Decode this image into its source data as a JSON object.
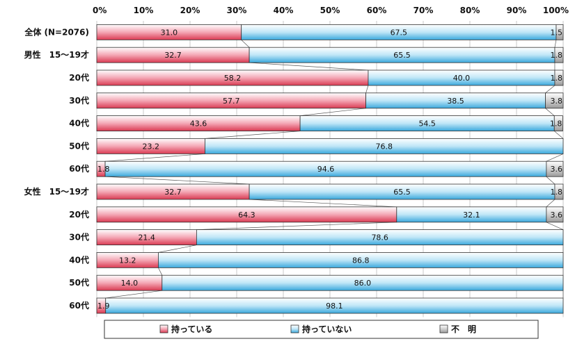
{
  "chart_data": {
    "type": "bar",
    "orientation": "horizontal",
    "stacked": true,
    "percent_stacked": true,
    "xlim": [
      0,
      100
    ],
    "x_ticks": [
      "0%",
      "10%",
      "20%",
      "30%",
      "40%",
      "50%",
      "60%",
      "70%",
      "80%",
      "90%",
      "100%"
    ],
    "gridlines": true,
    "legend_placement": "bottom",
    "colors": {
      "series_0": "#f4a7b5",
      "series_1": "#bfe6f7",
      "series_2": "#d0d0d0",
      "gradient_0": "#d93a52",
      "gradient_1": "#3aa8dc",
      "gradient_2": "#9a9a9a"
    },
    "categories": [
      "全体 (N=2076)",
      "男性　15～19才",
      "20代",
      "30代",
      "40代",
      "50代",
      "60代",
      "女性　15～19才",
      "20代",
      "30代",
      "40代",
      "50代",
      "60代"
    ],
    "series": [
      {
        "name": "持っている",
        "values": [
          31.0,
          32.7,
          58.2,
          57.7,
          43.6,
          23.2,
          1.8,
          32.7,
          64.3,
          21.4,
          13.2,
          14.0,
          1.9
        ],
        "labels": [
          "31.0",
          "32.7",
          "58.2",
          "57.7",
          "43.6",
          "23.2",
          "1.8",
          "32.7",
          "64.3",
          "21.4",
          "13.2",
          "14.0",
          "1.9"
        ]
      },
      {
        "name": "持っていない",
        "values": [
          67.5,
          65.5,
          40.0,
          38.5,
          54.5,
          76.8,
          94.6,
          65.5,
          32.1,
          78.6,
          86.8,
          86.0,
          98.1
        ],
        "labels": [
          "67.5",
          "65.5",
          "40.0",
          "38.5",
          "54.5",
          "76.8",
          "94.6",
          "65.5",
          "32.1",
          "78.6",
          "86.8",
          "86.0",
          "98.1"
        ]
      },
      {
        "name": "不　明",
        "values": [
          1.5,
          1.8,
          1.8,
          3.8,
          1.8,
          0,
          3.6,
          1.8,
          3.6,
          0,
          0,
          0,
          0
        ],
        "labels": [
          "1.5",
          "1.8",
          "1.8",
          "3.8",
          "1.8",
          "",
          "3.6",
          "1.8",
          "3.6",
          "",
          "",
          "",
          ""
        ]
      }
    ]
  }
}
